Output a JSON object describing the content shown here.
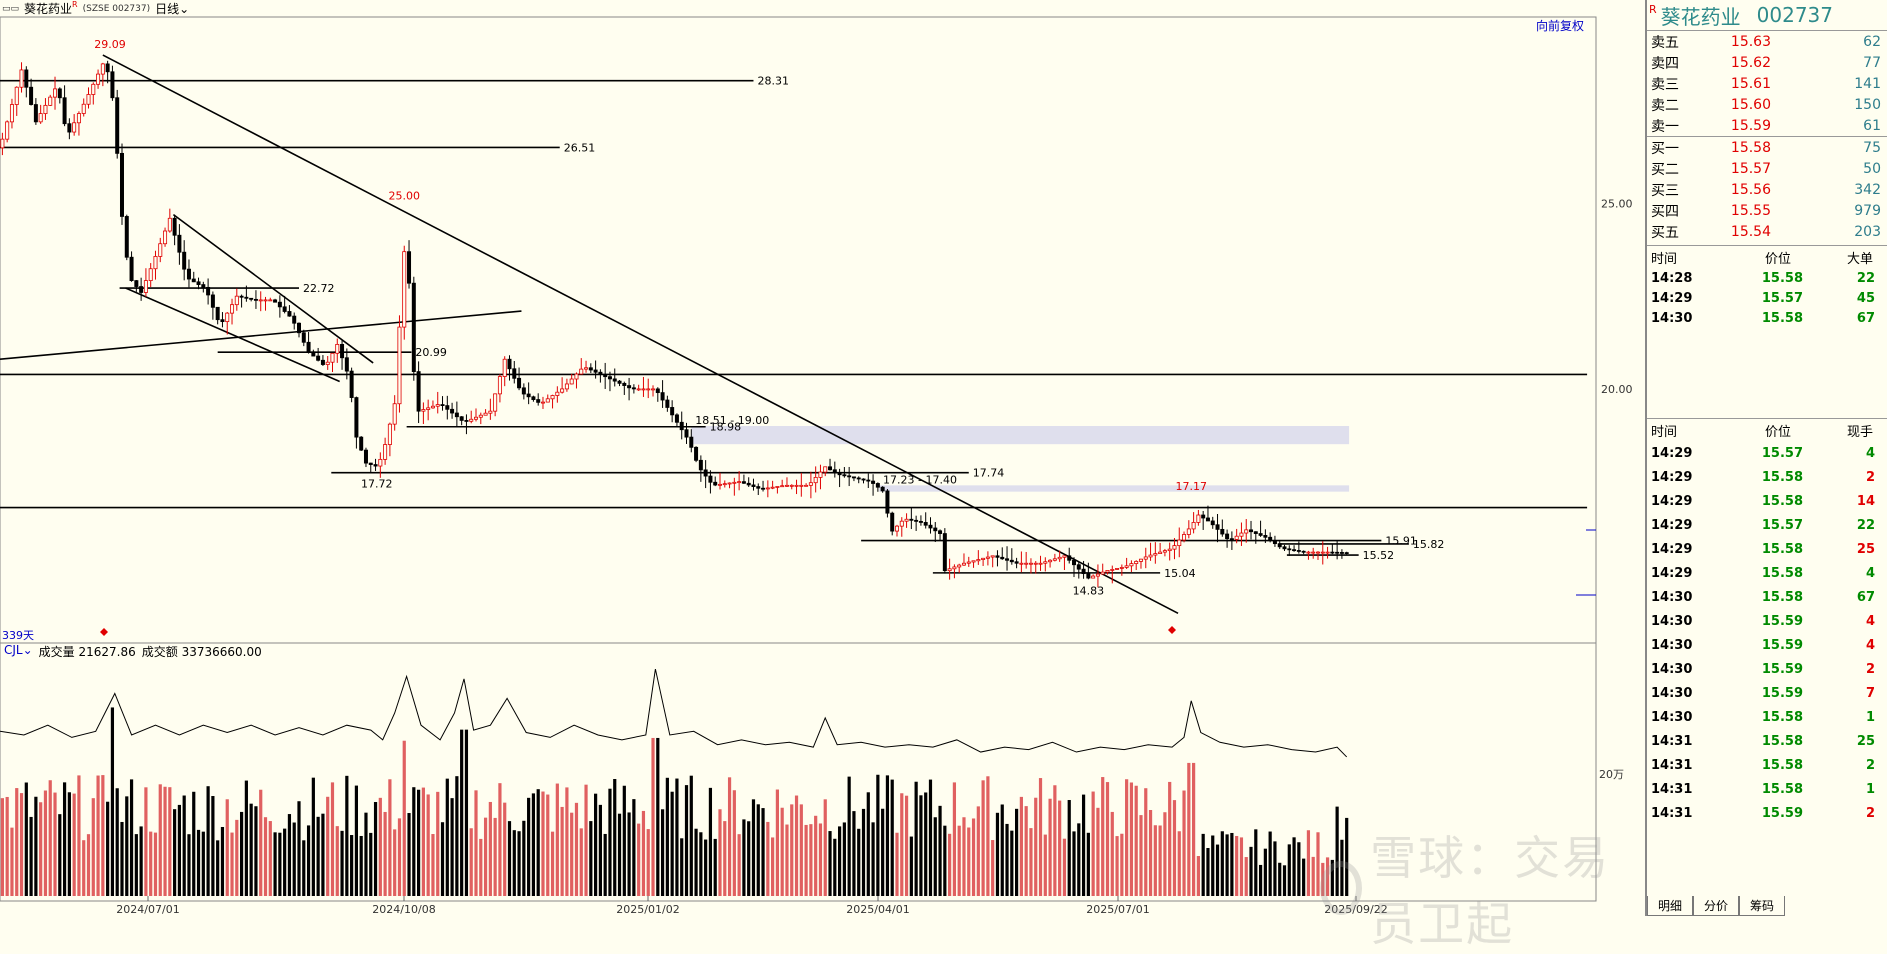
{
  "header": {
    "icon": "chart-mode-icon",
    "stock_name": "葵花药业",
    "stock_mark": "R",
    "exchange_code": "(SZSE 002737)",
    "period": "日线",
    "restore_button": "向前复权"
  },
  "days_label": "339天",
  "volume_header": {
    "indicator": "CJL",
    "vol_label": "成交量 21627.86",
    "amount_label": "成交额 33736660.00"
  },
  "watermark": "雪球：交易员卫起",
  "colors": {
    "up": "#e00000",
    "down": "#000000",
    "background": "#fffef0",
    "zone": "#dcdcec"
  },
  "chart_data": {
    "type": "candlestick",
    "price_axis_labels": [
      "25.00",
      "20.00"
    ],
    "volume_axis_label": "20万",
    "date_labels": [
      "2024/07/01",
      "2024/10/08",
      "2025/01/02",
      "2025/04/01",
      "2025/07/01",
      "2025/09/22"
    ],
    "price_range": [
      13.5,
      30.0
    ],
    "price_path": [
      [
        0,
        26.5
      ],
      [
        18,
        28.6
      ],
      [
        30,
        27.2
      ],
      [
        48,
        28.2
      ],
      [
        56,
        26.8
      ],
      [
        72,
        27.8
      ],
      [
        88,
        28.9
      ],
      [
        96,
        27.5
      ],
      [
        100,
        25.2
      ],
      [
        108,
        23.0
      ],
      [
        118,
        22.6
      ],
      [
        128,
        23.4
      ],
      [
        142,
        24.6
      ],
      [
        156,
        23.0
      ],
      [
        172,
        22.7
      ],
      [
        184,
        21.7
      ],
      [
        198,
        22.5
      ],
      [
        212,
        22.4
      ],
      [
        228,
        22.4
      ],
      [
        244,
        21.9
      ],
      [
        258,
        21.0
      ],
      [
        272,
        20.6
      ],
      [
        282,
        21.2
      ],
      [
        292,
        20.3
      ],
      [
        298,
        18.7
      ],
      [
        306,
        18.0
      ],
      [
        316,
        17.9
      ],
      [
        322,
        18.5
      ],
      [
        330,
        19.6
      ],
      [
        336,
        22.7
      ],
      [
        340,
        24.7
      ],
      [
        344,
        21.0
      ],
      [
        350,
        19.4
      ],
      [
        368,
        19.6
      ],
      [
        388,
        19.1
      ],
      [
        410,
        19.4
      ],
      [
        422,
        20.8
      ],
      [
        436,
        19.9
      ],
      [
        452,
        19.6
      ],
      [
        470,
        20.0
      ],
      [
        488,
        20.6
      ],
      [
        508,
        20.3
      ],
      [
        528,
        20.0
      ],
      [
        548,
        20.0
      ],
      [
        564,
        19.2
      ],
      [
        576,
        18.6
      ],
      [
        584,
        17.9
      ],
      [
        596,
        17.4
      ],
      [
        618,
        17.5
      ],
      [
        636,
        17.3
      ],
      [
        656,
        17.4
      ],
      [
        676,
        17.4
      ],
      [
        690,
        17.9
      ],
      [
        700,
        17.7
      ],
      [
        714,
        17.6
      ],
      [
        728,
        17.5
      ],
      [
        740,
        17.2
      ],
      [
        744,
        16.1
      ],
      [
        756,
        16.5
      ],
      [
        770,
        16.4
      ],
      [
        786,
        16.1
      ],
      [
        790,
        15.1
      ],
      [
        806,
        15.3
      ],
      [
        830,
        15.5
      ],
      [
        850,
        15.3
      ],
      [
        870,
        15.3
      ],
      [
        890,
        15.5
      ],
      [
        910,
        14.9
      ],
      [
        925,
        15.1
      ],
      [
        940,
        15.2
      ],
      [
        960,
        15.5
      ],
      [
        980,
        15.7
      ],
      [
        996,
        16.3
      ],
      [
        1002,
        16.6
      ],
      [
        1012,
        16.4
      ],
      [
        1028,
        15.9
      ],
      [
        1042,
        16.2
      ],
      [
        1058,
        16.0
      ],
      [
        1072,
        15.7
      ],
      [
        1090,
        15.6
      ],
      [
        1110,
        15.6
      ],
      [
        1128,
        15.58
      ]
    ],
    "annotations": [
      {
        "text": "29.09",
        "x": 92,
        "price": 29.09,
        "color": "#e00000"
      },
      {
        "text": "25.00",
        "x": 338,
        "price": 25.0,
        "color": "#e00000"
      },
      {
        "text": "17.17",
        "x": 996,
        "price": 17.17,
        "color": "#e00000"
      },
      {
        "text": "17.72",
        "x": 315,
        "price": 17.72,
        "color": "#000000"
      },
      {
        "text": "14.83",
        "x": 910,
        "price": 14.83,
        "color": "#000000"
      }
    ],
    "lines": [
      {
        "x1": 0,
        "p1": 28.31,
        "x2": 630,
        "p2": 28.31,
        "label": "28.31"
      },
      {
        "x1": 0,
        "p1": 26.51,
        "x2": 468,
        "p2": 26.51,
        "label": "26.51"
      },
      {
        "x1": 100,
        "p1": 22.72,
        "x2": 250,
        "p2": 22.72,
        "label": "22.72"
      },
      {
        "x1": 182,
        "p1": 20.99,
        "x2": 344,
        "p2": 20.99,
        "label": "20.99"
      },
      {
        "x1": 0,
        "p1": 20.39,
        "x2": 1327,
        "p2": 20.39,
        "label": ""
      },
      {
        "x1": 340,
        "p1": 18.98,
        "x2": 590,
        "p2": 18.98,
        "label": "18.98"
      },
      {
        "x1": 277,
        "p1": 17.74,
        "x2": 810,
        "p2": 17.74,
        "label": "17.74"
      },
      {
        "x1": 0,
        "p1": 16.8,
        "x2": 1327,
        "p2": 16.8,
        "label": ""
      },
      {
        "x1": 720,
        "p1": 15.91,
        "x2": 1155,
        "p2": 15.91,
        "label": "15.91"
      },
      {
        "x1": 1070,
        "p1": 15.82,
        "x2": 1178,
        "p2": 15.82,
        "label": "15.82"
      },
      {
        "x1": 1076,
        "p1": 15.52,
        "x2": 1136,
        "p2": 15.52,
        "label": "15.52"
      },
      {
        "x1": 780,
        "p1": 15.04,
        "x2": 970,
        "p2": 15.04,
        "label": "15.04"
      },
      {
        "x1": 86,
        "p1": 29.0,
        "x2": 985,
        "p2": 13.95,
        "label": ""
      },
      {
        "x1": 145,
        "p1": 24.7,
        "x2": 312,
        "p2": 20.7,
        "label": ""
      },
      {
        "x1": 105,
        "p1": 22.72,
        "x2": 284,
        "p2": 20.2,
        "label": ""
      },
      {
        "x1": 0,
        "p1": 20.8,
        "x2": 436,
        "p2": 22.1,
        "label": ""
      }
    ],
    "zones": [
      {
        "x1": 578,
        "x2": 1128,
        "p_top": 19.0,
        "p_bottom": 18.51,
        "label": "18.51 - 19.00"
      },
      {
        "x1": 735,
        "x2": 1128,
        "p_top": 17.4,
        "p_bottom": 17.23,
        "label": "17.23 - 17.40"
      }
    ],
    "volume_ma_path": [
      [
        0,
        135
      ],
      [
        20,
        132
      ],
      [
        40,
        140
      ],
      [
        60,
        130
      ],
      [
        80,
        135
      ],
      [
        96,
        166
      ],
      [
        110,
        132
      ],
      [
        130,
        140
      ],
      [
        150,
        132
      ],
      [
        170,
        140
      ],
      [
        190,
        134
      ],
      [
        210,
        140
      ],
      [
        230,
        132
      ],
      [
        250,
        138
      ],
      [
        270,
        132
      ],
      [
        290,
        140
      ],
      [
        310,
        136
      ],
      [
        320,
        128
      ],
      [
        330,
        150
      ],
      [
        340,
        180
      ],
      [
        352,
        140
      ],
      [
        368,
        128
      ],
      [
        380,
        150
      ],
      [
        388,
        178
      ],
      [
        396,
        136
      ],
      [
        410,
        140
      ],
      [
        424,
        162
      ],
      [
        440,
        134
      ],
      [
        460,
        130
      ],
      [
        480,
        140
      ],
      [
        500,
        132
      ],
      [
        520,
        128
      ],
      [
        540,
        132
      ],
      [
        548,
        186
      ],
      [
        560,
        132
      ],
      [
        580,
        135
      ],
      [
        600,
        124
      ],
      [
        620,
        128
      ],
      [
        640,
        124
      ],
      [
        660,
        126
      ],
      [
        680,
        122
      ],
      [
        690,
        146
      ],
      [
        700,
        124
      ],
      [
        720,
        126
      ],
      [
        740,
        122
      ],
      [
        760,
        124
      ],
      [
        780,
        122
      ],
      [
        800,
        128
      ],
      [
        820,
        118
      ],
      [
        840,
        122
      ],
      [
        860,
        120
      ],
      [
        880,
        126
      ],
      [
        900,
        118
      ],
      [
        920,
        122
      ],
      [
        940,
        120
      ],
      [
        960,
        124
      ],
      [
        980,
        122
      ],
      [
        990,
        130
      ],
      [
        996,
        160
      ],
      [
        1004,
        134
      ],
      [
        1020,
        126
      ],
      [
        1040,
        122
      ],
      [
        1060,
        124
      ],
      [
        1080,
        120
      ],
      [
        1100,
        118
      ],
      [
        1118,
        122
      ],
      [
        1126,
        114
      ]
    ],
    "volume_peaks": [
      [
        94,
        85
      ],
      [
        338,
        70
      ],
      [
        388,
        100
      ],
      [
        548,
        95
      ],
      [
        996,
        80
      ],
      [
        1120,
        25
      ]
    ]
  },
  "side_panel": {
    "mark": "R",
    "name": "葵花药业",
    "code": "002737",
    "asks": [
      {
        "label": "卖五",
        "price": "15.63",
        "volume": "62"
      },
      {
        "label": "卖四",
        "price": "15.62",
        "volume": "77"
      },
      {
        "label": "卖三",
        "price": "15.61",
        "volume": "141"
      },
      {
        "label": "卖二",
        "price": "15.60",
        "volume": "150"
      },
      {
        "label": "卖一",
        "price": "15.59",
        "volume": "61"
      }
    ],
    "bids": [
      {
        "label": "买一",
        "price": "15.58",
        "volume": "75"
      },
      {
        "label": "买二",
        "price": "15.57",
        "volume": "50"
      },
      {
        "label": "买三",
        "price": "15.56",
        "volume": "342"
      },
      {
        "label": "买四",
        "price": "15.55",
        "volume": "979"
      },
      {
        "label": "买五",
        "price": "15.54",
        "volume": "203"
      }
    ],
    "big_orders_header": {
      "time": "时间",
      "price": "价位",
      "volume": "大单"
    },
    "big_orders": [
      {
        "time": "14:28",
        "price": "15.58",
        "volume": "22"
      },
      {
        "time": "14:29",
        "price": "15.57",
        "volume": "45"
      },
      {
        "time": "14:30",
        "price": "15.58",
        "volume": "67"
      }
    ],
    "ticks_header": {
      "time": "时间",
      "price": "价位",
      "volume": "现手"
    },
    "ticks": [
      {
        "time": "14:29",
        "price": "15.57",
        "volume": "4",
        "side": "buy"
      },
      {
        "time": "14:29",
        "price": "15.58",
        "volume": "2",
        "side": "sell"
      },
      {
        "time": "14:29",
        "price": "15.58",
        "volume": "14",
        "side": "sell"
      },
      {
        "time": "14:29",
        "price": "15.57",
        "volume": "22",
        "side": "buy"
      },
      {
        "time": "14:29",
        "price": "15.58",
        "volume": "25",
        "side": "sell"
      },
      {
        "time": "14:29",
        "price": "15.58",
        "volume": "4",
        "side": "buy"
      },
      {
        "time": "14:30",
        "price": "15.58",
        "volume": "67",
        "side": "buy"
      },
      {
        "time": "14:30",
        "price": "15.59",
        "volume": "4",
        "side": "sell"
      },
      {
        "time": "14:30",
        "price": "15.59",
        "volume": "4",
        "side": "sell"
      },
      {
        "time": "14:30",
        "price": "15.59",
        "volume": "2",
        "side": "sell"
      },
      {
        "time": "14:30",
        "price": "15.59",
        "volume": "7",
        "side": "sell"
      },
      {
        "time": "14:30",
        "price": "15.58",
        "volume": "1",
        "side": "buy"
      },
      {
        "time": "14:31",
        "price": "15.58",
        "volume": "25",
        "side": "buy"
      },
      {
        "time": "14:31",
        "price": "15.58",
        "volume": "2",
        "side": "buy"
      },
      {
        "time": "14:31",
        "price": "15.58",
        "volume": "1",
        "side": "buy"
      },
      {
        "time": "14:31",
        "price": "15.59",
        "volume": "2",
        "side": "sell"
      }
    ],
    "tabs": [
      "明细",
      "分价",
      "筹码"
    ]
  }
}
